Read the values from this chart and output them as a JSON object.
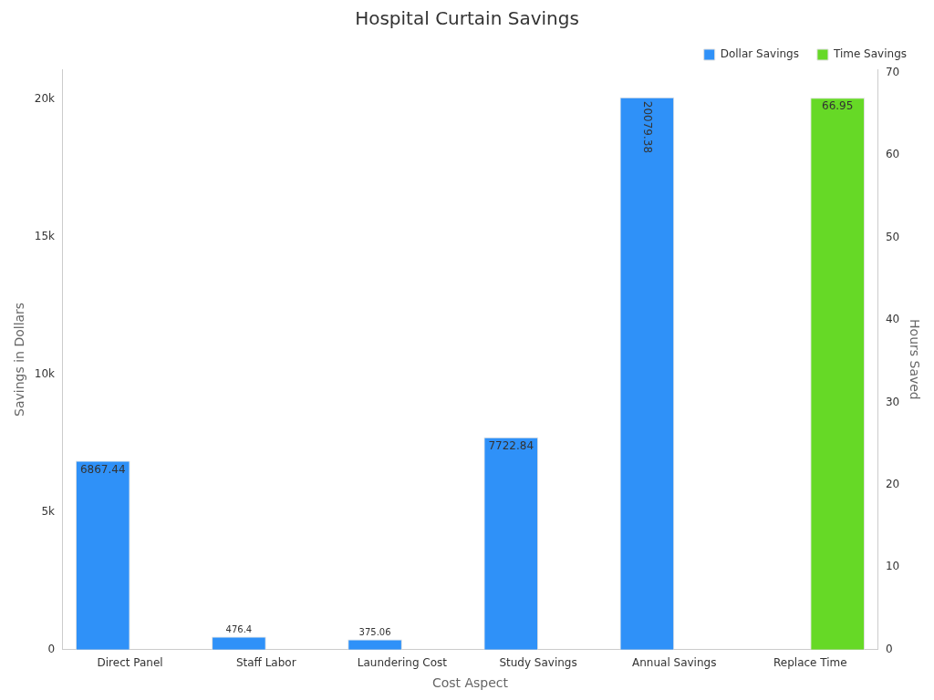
{
  "chart_data": {
    "type": "bar",
    "title": "Hospital Curtain Savings",
    "xlabel": "Cost Aspect",
    "ylabel": "Savings in Dollars",
    "y2label": "Hours Saved",
    "categories": [
      "Direct Panel",
      "Staff Labor",
      "Laundering Cost",
      "Study Savings",
      "Annual Savings",
      "Replace Time"
    ],
    "series": [
      {
        "name": "Dollar Savings",
        "color": "#2f91f8",
        "values": [
          6867.44,
          476.4,
          375.06,
          7722.84,
          20079.38,
          null
        ]
      },
      {
        "name": "Time Savings",
        "color": "#66d926",
        "axis": "y2",
        "values": [
          null,
          null,
          null,
          null,
          null,
          66.95
        ]
      }
    ],
    "ylim": [
      0,
      21100
    ],
    "yticks": [
      0,
      {
        "value": 5000,
        "label": "5k"
      },
      {
        "value": 10000,
        "label": "10k"
      },
      {
        "value": 15000,
        "label": "15k"
      },
      {
        "value": 20000,
        "label": "20k"
      }
    ],
    "y2lim": [
      0,
      70.4
    ],
    "y2ticks": [
      0,
      10,
      20,
      30,
      40,
      50,
      60,
      70
    ],
    "data_labels": true,
    "legend": "top right",
    "grid": false
  }
}
